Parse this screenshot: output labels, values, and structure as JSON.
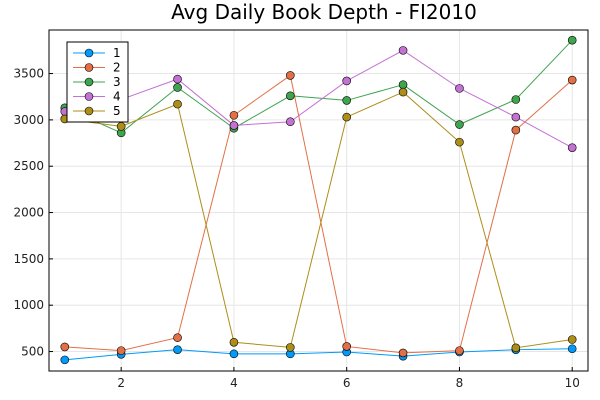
{
  "chart_data": {
    "type": "line",
    "title": "Avg Daily Book Depth - FI2010",
    "xlabel": "",
    "ylabel": "",
    "x": [
      1,
      2,
      3,
      4,
      5,
      6,
      7,
      8,
      9,
      10
    ],
    "xlim": [
      0.72,
      10.28
    ],
    "ylim": [
      290,
      3970
    ],
    "xticks": [
      2,
      4,
      6,
      8,
      10
    ],
    "yticks": [
      500,
      1000,
      1500,
      2000,
      2500,
      3000,
      3500
    ],
    "grid": true,
    "legend_position": "top-left",
    "series": [
      {
        "name": "1",
        "color": "#009AFA",
        "values": [
          410,
          470,
          520,
          475,
          475,
          495,
          450,
          495,
          520,
          530
        ]
      },
      {
        "name": "2",
        "color": "#E36F47",
        "values": [
          550,
          510,
          650,
          3050,
          3480,
          555,
          485,
          510,
          2890,
          3430
        ]
      },
      {
        "name": "3",
        "color": "#3EA44E",
        "values": [
          3130,
          2860,
          3350,
          2910,
          3260,
          3210,
          3380,
          2950,
          3220,
          3860
        ]
      },
      {
        "name": "4",
        "color": "#C371D2",
        "values": [
          3090,
          3220,
          3440,
          2940,
          2980,
          3420,
          3750,
          3340,
          3030,
          2700
        ]
      },
      {
        "name": "5",
        "color": "#AC8E18",
        "values": [
          3010,
          2930,
          3170,
          600,
          545,
          3030,
          3300,
          2760,
          540,
          630
        ]
      }
    ]
  }
}
